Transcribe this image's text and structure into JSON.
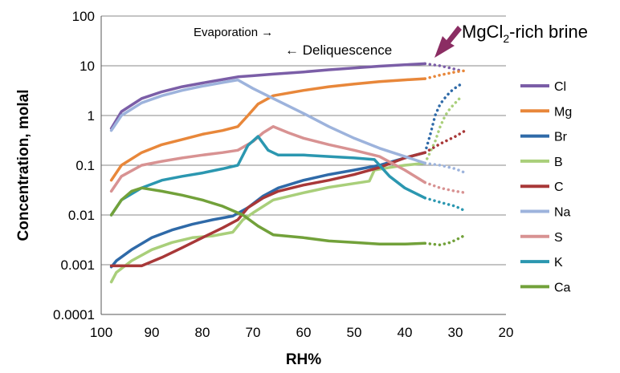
{
  "chart_data": {
    "type": "line",
    "xlabel": "RH%",
    "ylabel": "Concentration,  molal",
    "x_ticks": [
      "100",
      "90",
      "80",
      "70",
      "60",
      "50",
      "40",
      "30",
      "20"
    ],
    "y_ticks": [
      "100",
      "10",
      "1",
      "0.1",
      "0.01",
      "0.001",
      "0.0001"
    ],
    "xlim": [
      100,
      20
    ],
    "ylim": [
      0.0001,
      100
    ],
    "yscale": "log",
    "grid": "horizontal",
    "legend_position": "right",
    "annotations": {
      "evaporation": "Evaporation →",
      "deliquescence": "← Deliquescence",
      "brine_main": "MgCl",
      "brine_sub": "2",
      "brine_rest": "-rich brine"
    },
    "series": [
      {
        "name": "Cl",
        "color": "#7b5ea7",
        "solid": [
          [
            98,
            0.55
          ],
          [
            96,
            1.2
          ],
          [
            92,
            2.2
          ],
          [
            88,
            3.0
          ],
          [
            84,
            3.8
          ],
          [
            80,
            4.5
          ],
          [
            76,
            5.3
          ],
          [
            73,
            6.0
          ],
          [
            70,
            6.3
          ],
          [
            66,
            6.8
          ],
          [
            60,
            7.5
          ],
          [
            55,
            8.3
          ],
          [
            50,
            9.0
          ],
          [
            45,
            9.8
          ],
          [
            40,
            10.5
          ],
          [
            36,
            11.0
          ]
        ],
        "dotted": [
          [
            36,
            11.0
          ],
          [
            33,
            10.0
          ],
          [
            31,
            9.0
          ],
          [
            29,
            8.0
          ]
        ]
      },
      {
        "name": "Mg",
        "color": "#e8873a",
        "solid": [
          [
            98,
            0.05
          ],
          [
            96,
            0.1
          ],
          [
            92,
            0.18
          ],
          [
            88,
            0.26
          ],
          [
            84,
            0.33
          ],
          [
            80,
            0.42
          ],
          [
            76,
            0.5
          ],
          [
            73,
            0.6
          ],
          [
            71,
            1.0
          ],
          [
            69,
            1.7
          ],
          [
            66,
            2.5
          ],
          [
            60,
            3.2
          ],
          [
            55,
            3.8
          ],
          [
            50,
            4.3
          ],
          [
            45,
            4.8
          ],
          [
            40,
            5.2
          ],
          [
            36,
            5.5
          ]
        ],
        "dotted": [
          [
            36,
            5.5
          ],
          [
            33,
            6.5
          ],
          [
            30,
            7.5
          ],
          [
            28,
            8.0
          ]
        ]
      },
      {
        "name": "Br",
        "color": "#2f6aa8",
        "solid": [
          [
            98,
            0.0009
          ],
          [
            97,
            0.0012
          ],
          [
            94,
            0.002
          ],
          [
            90,
            0.0035
          ],
          [
            86,
            0.005
          ],
          [
            82,
            0.0065
          ],
          [
            78,
            0.008
          ],
          [
            74,
            0.0095
          ],
          [
            71,
            0.014
          ],
          [
            68,
            0.024
          ],
          [
            65,
            0.035
          ],
          [
            60,
            0.05
          ],
          [
            55,
            0.065
          ],
          [
            50,
            0.08
          ],
          [
            45,
            0.1
          ],
          [
            40,
            0.14
          ],
          [
            36,
            0.18
          ]
        ],
        "dotted": [
          [
            36,
            0.18
          ],
          [
            35,
            0.4
          ],
          [
            34,
            1.0
          ],
          [
            33,
            1.7
          ],
          [
            32,
            2.3
          ],
          [
            31,
            3.0
          ],
          [
            30,
            3.6
          ],
          [
            29,
            4.2
          ]
        ]
      },
      {
        "name": "B",
        "color": "#a9cf7a",
        "solid": [
          [
            98,
            0.00045
          ],
          [
            97,
            0.0007
          ],
          [
            94,
            0.0012
          ],
          [
            90,
            0.002
          ],
          [
            86,
            0.0028
          ],
          [
            82,
            0.0035
          ],
          [
            78,
            0.0038
          ],
          [
            74,
            0.0045
          ],
          [
            72,
            0.008
          ],
          [
            70,
            0.011
          ],
          [
            66,
            0.02
          ],
          [
            60,
            0.028
          ],
          [
            55,
            0.036
          ],
          [
            50,
            0.043
          ],
          [
            47,
            0.048
          ],
          [
            46,
            0.08
          ],
          [
            43,
            0.09
          ],
          [
            40,
            0.1
          ],
          [
            36,
            0.11
          ]
        ],
        "dotted": [
          [
            36,
            0.11
          ],
          [
            34,
            0.3
          ],
          [
            33,
            0.6
          ],
          [
            32,
            1.0
          ],
          [
            31,
            1.4
          ],
          [
            30,
            1.8
          ],
          [
            29,
            2.3
          ]
        ]
      },
      {
        "name": "C",
        "color": "#a83838",
        "solid": [
          [
            98,
            0.00095
          ],
          [
            95,
            0.00095
          ],
          [
            92,
            0.00095
          ],
          [
            88,
            0.0014
          ],
          [
            84,
            0.0022
          ],
          [
            80,
            0.0035
          ],
          [
            76,
            0.0055
          ],
          [
            73,
            0.008
          ],
          [
            71,
            0.014
          ],
          [
            68,
            0.022
          ],
          [
            65,
            0.03
          ],
          [
            60,
            0.04
          ],
          [
            55,
            0.05
          ],
          [
            50,
            0.065
          ],
          [
            45,
            0.09
          ],
          [
            40,
            0.14
          ],
          [
            36,
            0.18
          ]
        ],
        "dotted": [
          [
            36,
            0.18
          ],
          [
            33,
            0.27
          ],
          [
            30,
            0.38
          ],
          [
            28,
            0.5
          ]
        ]
      },
      {
        "name": "Na",
        "color": "#9db3dc",
        "solid": [
          [
            98,
            0.5
          ],
          [
            96,
            1.0
          ],
          [
            92,
            1.8
          ],
          [
            88,
            2.5
          ],
          [
            84,
            3.2
          ],
          [
            80,
            3.9
          ],
          [
            76,
            4.6
          ],
          [
            73,
            5.2
          ],
          [
            70,
            3.5
          ],
          [
            66,
            2.2
          ],
          [
            60,
            1.1
          ],
          [
            55,
            0.6
          ],
          [
            50,
            0.35
          ],
          [
            45,
            0.22
          ],
          [
            40,
            0.15
          ],
          [
            36,
            0.11
          ]
        ],
        "dotted": [
          [
            36,
            0.11
          ],
          [
            33,
            0.1
          ],
          [
            30,
            0.085
          ],
          [
            28,
            0.07
          ]
        ]
      },
      {
        "name": "S",
        "color": "#d89292",
        "solid": [
          [
            98,
            0.03
          ],
          [
            96,
            0.06
          ],
          [
            92,
            0.1
          ],
          [
            88,
            0.12
          ],
          [
            84,
            0.14
          ],
          [
            80,
            0.16
          ],
          [
            76,
            0.18
          ],
          [
            73,
            0.2
          ],
          [
            70,
            0.3
          ],
          [
            68,
            0.45
          ],
          [
            66,
            0.6
          ],
          [
            63,
            0.45
          ],
          [
            60,
            0.35
          ],
          [
            55,
            0.26
          ],
          [
            50,
            0.2
          ],
          [
            45,
            0.15
          ],
          [
            40,
            0.08
          ],
          [
            36,
            0.045
          ]
        ],
        "dotted": [
          [
            36,
            0.045
          ],
          [
            33,
            0.035
          ],
          [
            30,
            0.03
          ],
          [
            28,
            0.028
          ]
        ]
      },
      {
        "name": "K",
        "color": "#2b97b0",
        "solid": [
          [
            98,
            0.01
          ],
          [
            96,
            0.02
          ],
          [
            92,
            0.035
          ],
          [
            88,
            0.05
          ],
          [
            84,
            0.06
          ],
          [
            80,
            0.07
          ],
          [
            76,
            0.085
          ],
          [
            73,
            0.1
          ],
          [
            71,
            0.25
          ],
          [
            69,
            0.38
          ],
          [
            67,
            0.2
          ],
          [
            65,
            0.16
          ],
          [
            60,
            0.16
          ],
          [
            55,
            0.15
          ],
          [
            50,
            0.14
          ],
          [
            46,
            0.13
          ],
          [
            43,
            0.06
          ],
          [
            40,
            0.035
          ],
          [
            36,
            0.022
          ]
        ],
        "dotted": [
          [
            36,
            0.022
          ],
          [
            33,
            0.018
          ],
          [
            30,
            0.015
          ],
          [
            28,
            0.012
          ]
        ]
      },
      {
        "name": "Ca",
        "color": "#72a13a",
        "solid": [
          [
            98,
            0.01
          ],
          [
            96,
            0.02
          ],
          [
            94,
            0.03
          ],
          [
            92,
            0.035
          ],
          [
            88,
            0.03
          ],
          [
            84,
            0.025
          ],
          [
            80,
            0.02
          ],
          [
            76,
            0.015
          ],
          [
            72,
            0.01
          ],
          [
            69,
            0.006
          ],
          [
            66,
            0.004
          ],
          [
            60,
            0.0035
          ],
          [
            55,
            0.003
          ],
          [
            50,
            0.0028
          ],
          [
            45,
            0.0026
          ],
          [
            40,
            0.0026
          ],
          [
            36,
            0.0027
          ]
        ],
        "dotted": [
          [
            36,
            0.0027
          ],
          [
            33,
            0.0025
          ],
          [
            31,
            0.0028
          ],
          [
            29,
            0.0035
          ],
          [
            28,
            0.004
          ]
        ]
      }
    ]
  }
}
